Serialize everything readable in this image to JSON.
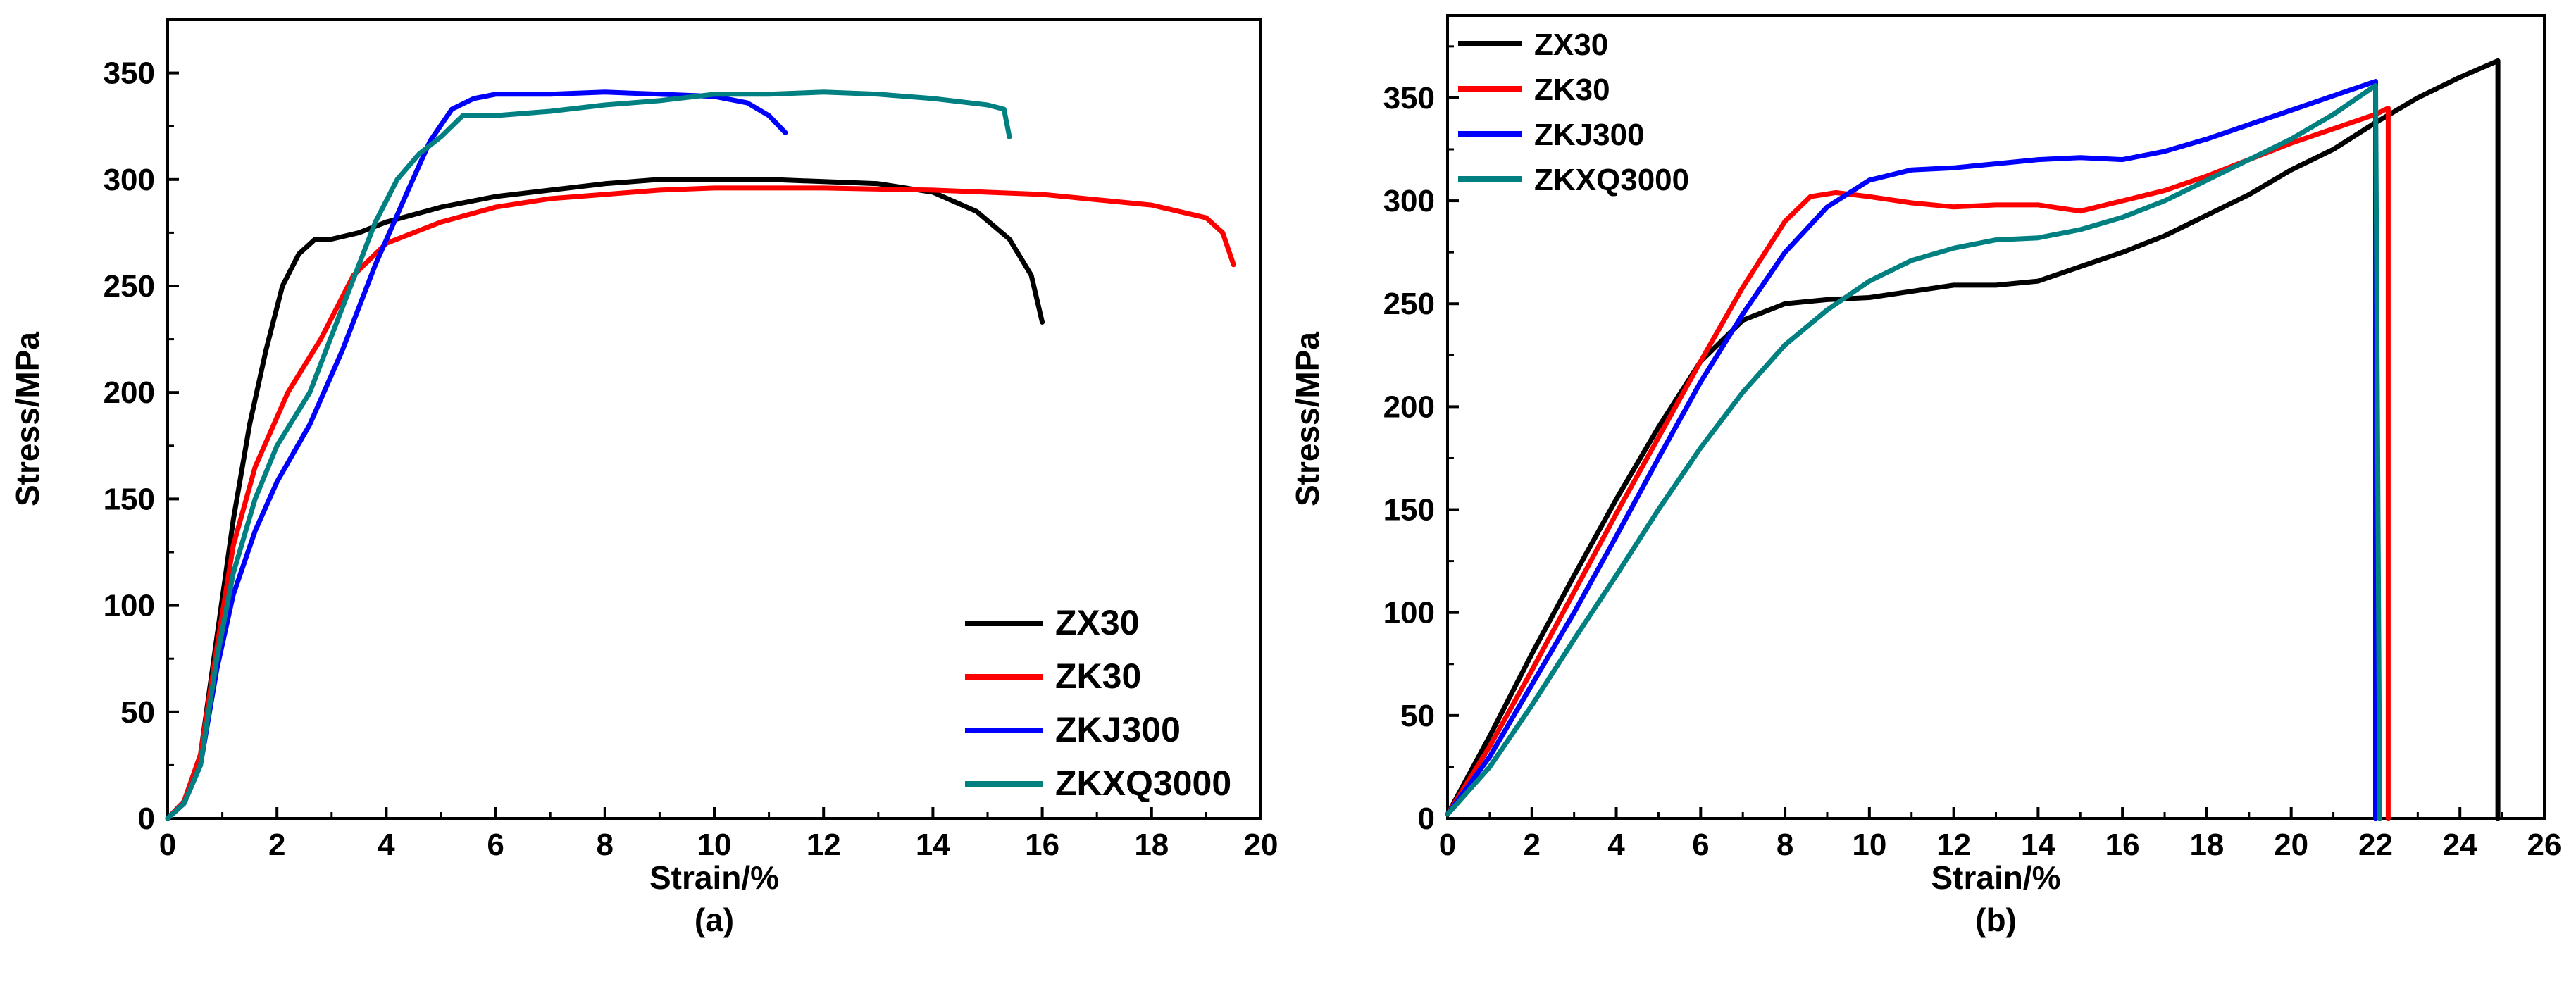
{
  "chart_data": [
    {
      "type": "line",
      "panel_label": "(a)",
      "xlabel": "Strain/%",
      "ylabel": "Stress/MPa",
      "xlim": [
        0,
        20
      ],
      "ylim": [
        0,
        375
      ],
      "xticks": [
        0,
        2,
        4,
        6,
        8,
        10,
        12,
        14,
        16,
        18,
        20
      ],
      "yticks": [
        0,
        50,
        100,
        150,
        200,
        250,
        300,
        350
      ],
      "legend_position": "bottom-right",
      "series": [
        {
          "name": "ZX30",
          "color": "#000000",
          "points": [
            [
              0,
              0
            ],
            [
              0.3,
              8
            ],
            [
              0.6,
              30
            ],
            [
              0.9,
              85
            ],
            [
              1.2,
              140
            ],
            [
              1.5,
              185
            ],
            [
              1.8,
              220
            ],
            [
              2.1,
              250
            ],
            [
              2.4,
              265
            ],
            [
              2.7,
              272
            ],
            [
              3.0,
              272
            ],
            [
              3.5,
              275
            ],
            [
              4,
              280
            ],
            [
              5,
              287
            ],
            [
              6,
              292
            ],
            [
              7,
              295
            ],
            [
              8,
              298
            ],
            [
              9,
              300
            ],
            [
              10,
              300
            ],
            [
              11,
              300
            ],
            [
              12,
              299
            ],
            [
              13,
              298
            ],
            [
              14,
              294
            ],
            [
              14.8,
              285
            ],
            [
              15.4,
              272
            ],
            [
              15.8,
              255
            ],
            [
              16,
              233
            ]
          ]
        },
        {
          "name": "ZK30",
          "color": "#ff0000",
          "points": [
            [
              0,
              0
            ],
            [
              0.3,
              8
            ],
            [
              0.6,
              30
            ],
            [
              0.9,
              80
            ],
            [
              1.2,
              128
            ],
            [
              1.6,
              165
            ],
            [
              2.2,
              200
            ],
            [
              2.8,
              225
            ],
            [
              3.4,
              255
            ],
            [
              4,
              270
            ],
            [
              5,
              280
            ],
            [
              6,
              287
            ],
            [
              7,
              291
            ],
            [
              8,
              293
            ],
            [
              9,
              295
            ],
            [
              10,
              296
            ],
            [
              12,
              296
            ],
            [
              14,
              295
            ],
            [
              16,
              293
            ],
            [
              18,
              288
            ],
            [
              19,
              282
            ],
            [
              19.3,
              275
            ],
            [
              19.5,
              260
            ]
          ]
        },
        {
          "name": "ZKJ300",
          "color": "#0000ff",
          "points": [
            [
              0,
              0
            ],
            [
              0.3,
              7
            ],
            [
              0.6,
              25
            ],
            [
              0.9,
              70
            ],
            [
              1.2,
              105
            ],
            [
              1.6,
              135
            ],
            [
              2,
              158
            ],
            [
              2.6,
              185
            ],
            [
              3.2,
              220
            ],
            [
              3.8,
              260
            ],
            [
              4.4,
              295
            ],
            [
              4.8,
              318
            ],
            [
              5.2,
              333
            ],
            [
              5.6,
              338
            ],
            [
              6,
              340
            ],
            [
              7,
              340
            ],
            [
              8,
              341
            ],
            [
              9,
              340
            ],
            [
              10,
              339
            ],
            [
              10.6,
              336
            ],
            [
              11,
              330
            ],
            [
              11.3,
              322
            ]
          ]
        },
        {
          "name": "ZKXQ3000",
          "color": "#008080",
          "points": [
            [
              0,
              0
            ],
            [
              0.3,
              7
            ],
            [
              0.6,
              25
            ],
            [
              0.9,
              75
            ],
            [
              1.2,
              115
            ],
            [
              1.6,
              150
            ],
            [
              2,
              175
            ],
            [
              2.6,
              200
            ],
            [
              3.2,
              240
            ],
            [
              3.8,
              280
            ],
            [
              4.2,
              300
            ],
            [
              4.6,
              312
            ],
            [
              5,
              320
            ],
            [
              5.4,
              330
            ],
            [
              6,
              330
            ],
            [
              7,
              332
            ],
            [
              8,
              335
            ],
            [
              9,
              337
            ],
            [
              10,
              340
            ],
            [
              11,
              340
            ],
            [
              12,
              341
            ],
            [
              13,
              340
            ],
            [
              14,
              338
            ],
            [
              15,
              335
            ],
            [
              15.3,
              333
            ],
            [
              15.4,
              320
            ]
          ]
        }
      ]
    },
    {
      "type": "line",
      "panel_label": "(b)",
      "xlabel": "Strain/%",
      "ylabel": "Stress/MPa",
      "xlim": [
        0,
        26
      ],
      "ylim": [
        0,
        390
      ],
      "xticks": [
        0,
        2,
        4,
        6,
        8,
        10,
        12,
        14,
        16,
        18,
        20,
        22,
        24,
        26
      ],
      "yticks": [
        0,
        50,
        100,
        150,
        200,
        250,
        300,
        350
      ],
      "legend_position": "top-left",
      "series": [
        {
          "name": "ZX30",
          "color": "#000000",
          "points": [
            [
              0,
              2
            ],
            [
              1,
              40
            ],
            [
              2,
              80
            ],
            [
              3,
              118
            ],
            [
              4,
              155
            ],
            [
              5,
              190
            ],
            [
              6,
              222
            ],
            [
              7,
              242
            ],
            [
              8,
              250
            ],
            [
              9,
              252
            ],
            [
              10,
              253
            ],
            [
              11,
              256
            ],
            [
              12,
              259
            ],
            [
              13,
              259
            ],
            [
              14,
              261
            ],
            [
              15,
              268
            ],
            [
              16,
              275
            ],
            [
              17,
              283
            ],
            [
              18,
              293
            ],
            [
              19,
              303
            ],
            [
              20,
              315
            ],
            [
              21,
              325
            ],
            [
              22,
              338
            ],
            [
              23,
              350
            ],
            [
              24,
              360
            ],
            [
              24.9,
              368
            ],
            [
              24.9,
              0
            ]
          ]
        },
        {
          "name": "ZK30",
          "color": "#ff0000",
          "points": [
            [
              0,
              2
            ],
            [
              1,
              35
            ],
            [
              2,
              72
            ],
            [
              3,
              110
            ],
            [
              4,
              148
            ],
            [
              5,
              185
            ],
            [
              6,
              222
            ],
            [
              7,
              258
            ],
            [
              8,
              290
            ],
            [
              8.6,
              302
            ],
            [
              9.2,
              304
            ],
            [
              10,
              302
            ],
            [
              11,
              299
            ],
            [
              12,
              297
            ],
            [
              13,
              298
            ],
            [
              14,
              298
            ],
            [
              15,
              295
            ],
            [
              16,
              300
            ],
            [
              17,
              305
            ],
            [
              18,
              312
            ],
            [
              19,
              320
            ],
            [
              20,
              328
            ],
            [
              21,
              335
            ],
            [
              22,
              342
            ],
            [
              22.3,
              345
            ],
            [
              22.3,
              0
            ]
          ]
        },
        {
          "name": "ZKJ300",
          "color": "#0000ff",
          "points": [
            [
              0,
              2
            ],
            [
              1,
              30
            ],
            [
              2,
              65
            ],
            [
              3,
              100
            ],
            [
              4,
              137
            ],
            [
              5,
              175
            ],
            [
              6,
              212
            ],
            [
              7,
              245
            ],
            [
              8,
              275
            ],
            [
              9,
              297
            ],
            [
              10,
              310
            ],
            [
              11,
              315
            ],
            [
              12,
              316
            ],
            [
              13,
              318
            ],
            [
              14,
              320
            ],
            [
              15,
              321
            ],
            [
              16,
              320
            ],
            [
              17,
              324
            ],
            [
              18,
              330
            ],
            [
              19,
              337
            ],
            [
              20,
              344
            ],
            [
              21,
              351
            ],
            [
              22,
              358
            ],
            [
              22,
              0
            ]
          ]
        },
        {
          "name": "ZKXQ3000",
          "color": "#008080",
          "points": [
            [
              0,
              2
            ],
            [
              1,
              25
            ],
            [
              2,
              55
            ],
            [
              3,
              87
            ],
            [
              4,
              118
            ],
            [
              5,
              150
            ],
            [
              6,
              180
            ],
            [
              7,
              207
            ],
            [
              8,
              230
            ],
            [
              9,
              247
            ],
            [
              10,
              261
            ],
            [
              11,
              271
            ],
            [
              12,
              277
            ],
            [
              13,
              281
            ],
            [
              14,
              282
            ],
            [
              15,
              286
            ],
            [
              16,
              292
            ],
            [
              17,
              300
            ],
            [
              18,
              310
            ],
            [
              19,
              320
            ],
            [
              20,
              330
            ],
            [
              21,
              342
            ],
            [
              22,
              356
            ],
            [
              22.1,
              0
            ]
          ]
        }
      ]
    }
  ]
}
